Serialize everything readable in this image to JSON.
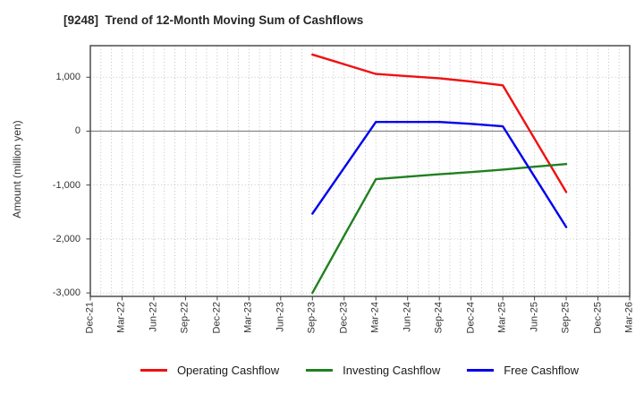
{
  "title": "[9248]  Trend of 12-Month Moving Sum of Cashflows",
  "y_axis_label": "Amount (million yen)",
  "chart_data": {
    "type": "line",
    "title": "[9248]  Trend of 12-Month Moving Sum of Cashflows",
    "xlabel": "",
    "ylabel": "Amount (million yen)",
    "categories": [
      "Dec-21",
      "Mar-22",
      "Jun-22",
      "Sep-22",
      "Dec-22",
      "Mar-23",
      "Jun-23",
      "Sep-23",
      "Dec-23",
      "Mar-24",
      "Jun-24",
      "Sep-24",
      "Dec-24",
      "Mar-25",
      "Jun-25",
      "Sep-25",
      "Dec-25",
      "Mar-26"
    ],
    "x_minor_per_major": 3,
    "ylim": [
      -3065,
      1585
    ],
    "y_ticks": [
      {
        "label": "1,000",
        "value": 1000
      },
      {
        "label": "0",
        "value": 0
      },
      {
        "label": "-1,000",
        "value": -1000
      },
      {
        "label": "-2,000",
        "value": -2000
      },
      {
        "label": "-3,000",
        "value": -3000
      }
    ],
    "start_index": 7,
    "data_x": [
      "Sep-23",
      "Dec-23",
      "Mar-24",
      "Jun-24",
      "Sep-24",
      "Dec-24",
      "Mar-25",
      "Jun-25",
      "Sep-25"
    ],
    "series": [
      {
        "name": "Operating Cashflow",
        "color": "#f01010",
        "values": [
          1420,
          1240,
          1060,
          1020,
          980,
          920,
          850,
          -140,
          -1130
        ]
      },
      {
        "name": "Investing Cashflow",
        "color": "#208020",
        "values": [
          -3000,
          -1940,
          -890,
          -845,
          -800,
          -760,
          -715,
          -660,
          -610
        ]
      },
      {
        "name": "Free Cashflow",
        "color": "#0000ee",
        "values": [
          -1530,
          -680,
          170,
          170,
          170,
          135,
          90,
          -845,
          -1780
        ]
      }
    ],
    "grid": true,
    "legend_position": "bottom",
    "styles": {
      "grid_color": "#b3b3b3",
      "zero_line_color": "#808080",
      "border_color": "#404040",
      "tick_color": "#404040"
    }
  }
}
